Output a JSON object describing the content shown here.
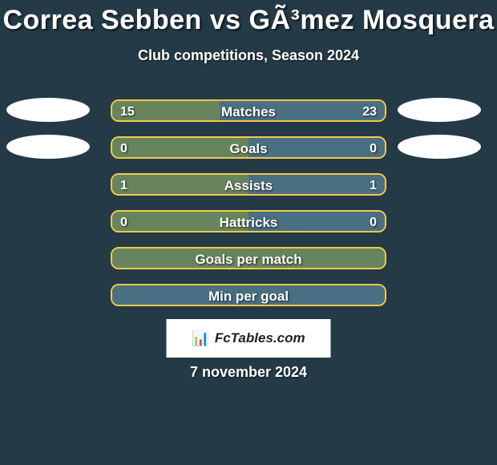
{
  "colors": {
    "background": "#243a46",
    "avatar": "#ffffff",
    "bar_border": "#f2c94c",
    "bar_left": "#68845c",
    "bar_right": "#4a6f82",
    "text": "#ffffff"
  },
  "title": "Correa Sebben vs GÃ³mez Mosquera",
  "title_fontsize": 34,
  "subtitle": "Club competitions, Season 2024",
  "subtitle_fontsize": 18,
  "label_fontsize": 17,
  "value_fontsize": 16,
  "bar": {
    "track_width": 344,
    "track_height": 28,
    "border_radius": 10,
    "border_width": 2
  },
  "avatar": {
    "width": 104,
    "height": 30
  },
  "rows": [
    {
      "label": "Matches",
      "left": "15",
      "right": "23",
      "left_pct": 39.5,
      "right_pct": 60.5,
      "show_avatars": true
    },
    {
      "label": "Goals",
      "left": "0",
      "right": "0",
      "left_pct": 50,
      "right_pct": 50,
      "show_avatars": true
    },
    {
      "label": "Assists",
      "left": "1",
      "right": "1",
      "left_pct": 50,
      "right_pct": 50,
      "show_avatars": false
    },
    {
      "label": "Hattricks",
      "left": "0",
      "right": "0",
      "left_pct": 50,
      "right_pct": 50,
      "show_avatars": false
    },
    {
      "label": "Goals per match",
      "left": "",
      "right": "",
      "left_pct": 100,
      "right_pct": 0,
      "show_avatars": false
    },
    {
      "label": "Min per goal",
      "left": "",
      "right": "",
      "left_pct": 0,
      "right_pct": 100,
      "show_avatars": false
    }
  ],
  "logo": {
    "icon": "📊",
    "text": "FcTables.com"
  },
  "date": "7 november 2024"
}
